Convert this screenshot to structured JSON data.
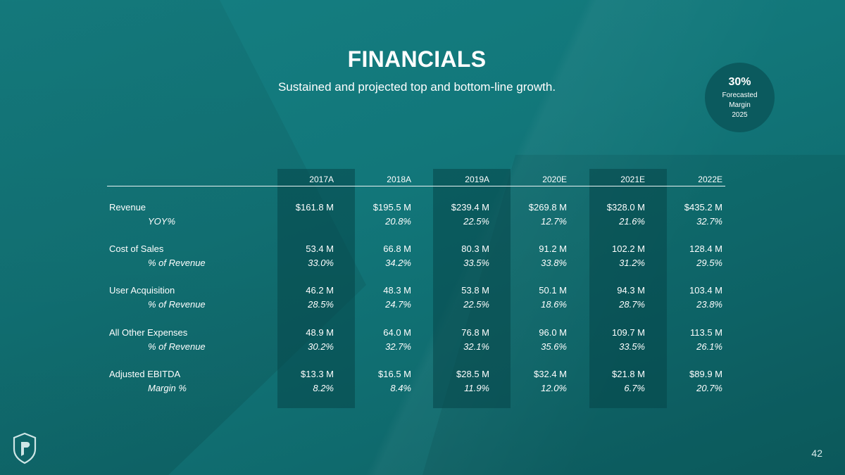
{
  "slide": {
    "title": "FINANCIALS",
    "subtitle": "Sustained and projected top and bottom-line growth.",
    "page_number": "42"
  },
  "badge": {
    "value": "30%",
    "lines": [
      "Forecasted",
      "Margin",
      "2025"
    ]
  },
  "colors": {
    "background": "#12777a",
    "highlight_column": "#0b5a5e",
    "badge": "#0b5a5e",
    "text": "#ffffff"
  },
  "icons": {
    "logo": "shield-logo-icon"
  },
  "table": {
    "columns": [
      "2017A",
      "2018A",
      "2019A",
      "2020E",
      "2021E",
      "2022E"
    ],
    "highlighted_columns": [
      "2017A",
      "2019A",
      "2021E"
    ],
    "groups": [
      {
        "label": "Revenue",
        "values": [
          "$161.8 M",
          "$195.5 M",
          "$239.4 M",
          "$269.8 M",
          "$328.0 M",
          "$435.2 M"
        ],
        "sub_label": "YOY%",
        "sub_values": [
          "",
          "20.8%",
          "22.5%",
          "12.7%",
          "21.6%",
          "32.7%"
        ]
      },
      {
        "label": "Cost of Sales",
        "values": [
          "53.4 M",
          "66.8 M",
          "80.3 M",
          "91.2 M",
          "102.2 M",
          "128.4 M"
        ],
        "sub_label": "% of Revenue",
        "sub_values": [
          "33.0%",
          "34.2%",
          "33.5%",
          "33.8%",
          "31.2%",
          "29.5%"
        ]
      },
      {
        "label": "User Acquisition",
        "values": [
          "46.2 M",
          "48.3 M",
          "53.8 M",
          "50.1 M",
          "94.3 M",
          "103.4 M"
        ],
        "sub_label": "% of Revenue",
        "sub_values": [
          "28.5%",
          "24.7%",
          "22.5%",
          "18.6%",
          "28.7%",
          "23.8%"
        ]
      },
      {
        "label": "All Other Expenses",
        "values": [
          "48.9 M",
          "64.0 M",
          "76.8 M",
          "96.0 M",
          "109.7 M",
          "113.5 M"
        ],
        "sub_label": "% of Revenue",
        "sub_values": [
          "30.2%",
          "32.7%",
          "32.1%",
          "35.6%",
          "33.5%",
          "26.1%"
        ]
      },
      {
        "label": "Adjusted EBITDA",
        "values": [
          "$13.3 M",
          "$16.5 M",
          "$28.5 M",
          "$32.4 M",
          "$21.8 M",
          "$89.9 M"
        ],
        "sub_label": "Margin %",
        "sub_values": [
          "8.2%",
          "8.4%",
          "11.9%",
          "12.0%",
          "6.7%",
          "20.7%"
        ]
      }
    ]
  }
}
